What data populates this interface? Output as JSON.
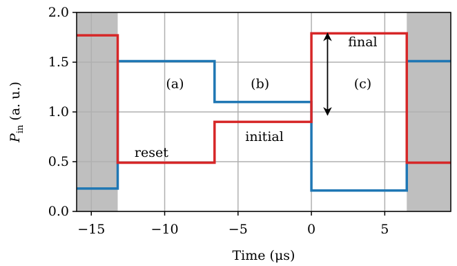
{
  "chart_data": {
    "type": "line",
    "title": "",
    "xlabel": "Time (μs)",
    "ylabel_main": "P",
    "ylabel_sub": "in",
    "ylabel_suffix": " (a. u.)",
    "xlim": [
      -16,
      9.5
    ],
    "ylim": [
      0.0,
      2.0
    ],
    "xticks": [
      -15,
      -10,
      -5,
      0,
      5
    ],
    "xtick_labels": [
      "−15",
      "−10",
      "−5",
      "0",
      "5"
    ],
    "yticks": [
      0.0,
      0.5,
      1.0,
      1.5,
      2.0
    ],
    "ytick_labels": [
      "0.0",
      "0.5",
      "1.0",
      "1.5",
      "2.0"
    ],
    "grid": true,
    "shaded_regions": [
      {
        "x0": -16,
        "x1": -13.2,
        "color": "#bfbfbf"
      },
      {
        "x0": 6.5,
        "x1": 9.5,
        "color": "#bfbfbf"
      }
    ],
    "series": [
      {
        "color": "#1f77b4",
        "x": [
          -16,
          -13.2,
          -13.2,
          -6.6,
          -6.6,
          0,
          0,
          6.5,
          6.5,
          9.5
        ],
        "y": [
          0.23,
          0.23,
          1.51,
          1.51,
          1.1,
          1.1,
          0.21,
          0.21,
          1.51,
          1.51
        ]
      },
      {
        "color": "#d62728",
        "x": [
          -16,
          -13.2,
          -13.2,
          -6.6,
          -6.6,
          0,
          0,
          6.5,
          6.5,
          9.5
        ],
        "y": [
          1.77,
          1.77,
          0.49,
          0.49,
          0.9,
          0.9,
          1.79,
          1.79,
          0.49,
          0.49
        ]
      }
    ],
    "annotations": [
      {
        "text": "(a)",
        "x": -9.3,
        "y": 1.24
      },
      {
        "text": "(b)",
        "x": -3.5,
        "y": 1.24
      },
      {
        "text": "(c)",
        "x": 3.5,
        "y": 1.24
      },
      {
        "text": "reset",
        "x": -10.9,
        "y": 0.55
      },
      {
        "text": "initial",
        "x": -3.2,
        "y": 0.71
      },
      {
        "text": "final",
        "x": 3.5,
        "y": 1.66
      }
    ],
    "arrow": {
      "x": 1.1,
      "y0": 0.97,
      "y1": 1.79
    }
  }
}
